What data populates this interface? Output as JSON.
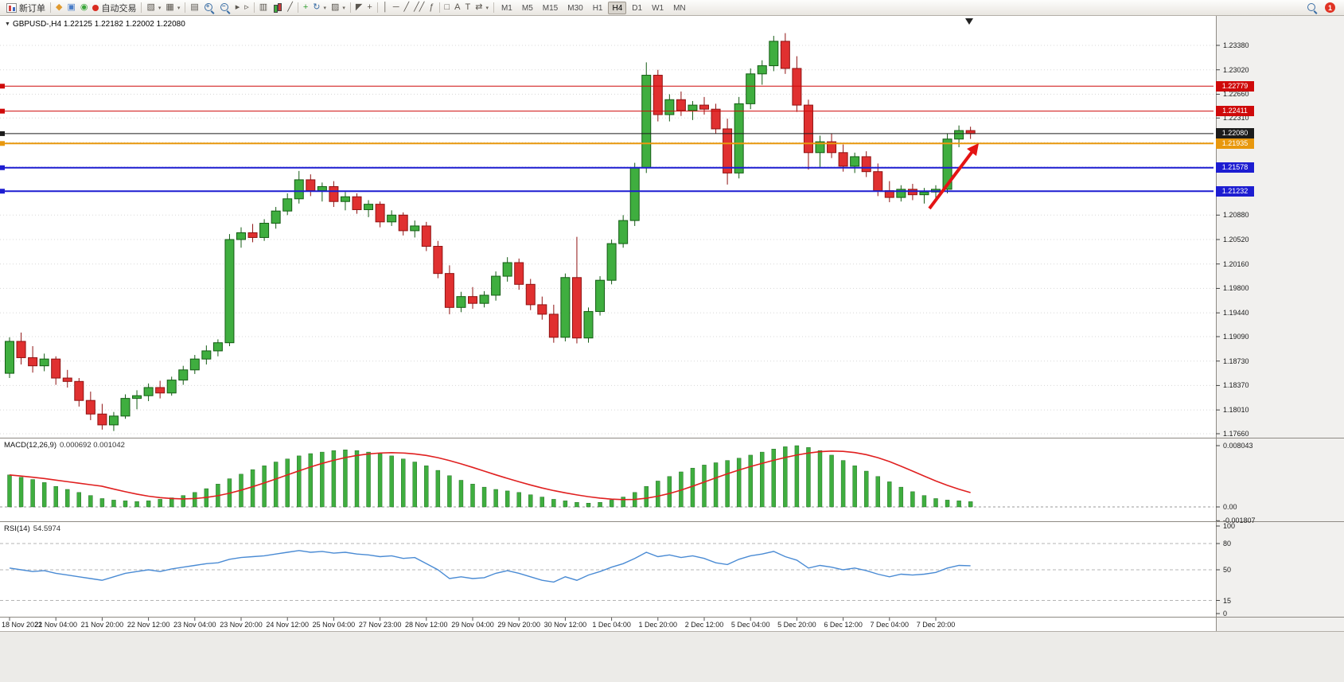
{
  "toolbar": {
    "items": [
      {
        "name": "new-order-button",
        "icon": "new-order-icon",
        "label": "新订单"
      },
      {
        "kind": "sep"
      },
      {
        "name": "market-watch-button",
        "icon": "market-watch-icon",
        "glyph": "◆",
        "color": "#e09a2f"
      },
      {
        "name": "data-window-button",
        "icon": "data-window-icon",
        "glyph": "▣",
        "color": "#4a7dc8"
      },
      {
        "name": "sound-alerts-button",
        "icon": "sound-alerts-icon",
        "glyph": "◉",
        "color": "#3aa53a"
      },
      {
        "name": "autotrade-button",
        "icon": "autotrade-icon",
        "label": "自动交易",
        "color": "#d92b20"
      },
      {
        "kind": "sep"
      },
      {
        "name": "new-chart-button",
        "icon": "new-chart-icon",
        "glyph": "▧",
        "caret": true
      },
      {
        "name": "chart-profiles-button",
        "icon": "chart-profiles-icon",
        "glyph": "▦",
        "caret": true
      },
      {
        "kind": "sep"
      },
      {
        "name": "tile-windows-button",
        "icon": "tile-windows-icon",
        "glyph": "▤"
      },
      {
        "name": "zoom-in-button",
        "icon": "zoom-in-icon"
      },
      {
        "name": "zoom-out-button",
        "icon": "zoom-out-icon"
      },
      {
        "name": "auto-scroll-button",
        "icon": "auto-scroll-icon",
        "glyph": "▸"
      },
      {
        "name": "chart-shift-button",
        "icon": "chart-shift-icon",
        "glyph": "▹"
      },
      {
        "kind": "sep"
      },
      {
        "name": "bar-chart-button",
        "icon": "bar-chart-icon",
        "glyph": "▥"
      },
      {
        "name": "candlestick-chart-button",
        "icon": "candlestick-icon"
      },
      {
        "name": "line-chart-button",
        "icon": "line-chart-icon",
        "glyph": "╱"
      },
      {
        "kind": "sep"
      },
      {
        "name": "indicators-button",
        "icon": "indicators-plus-icon",
        "glyph": "+",
        "color": "#2f9e2f"
      },
      {
        "name": "refresh-button",
        "icon": "refresh-icon",
        "glyph": "↻",
        "color": "#3a6ea5",
        "caret": true
      },
      {
        "name": "templates-button",
        "icon": "templates-icon",
        "glyph": "▨",
        "caret": true
      },
      {
        "kind": "sep"
      },
      {
        "name": "cursor-button",
        "icon": "cursor-icon",
        "glyph": "◤"
      },
      {
        "name": "crosshair-button",
        "icon": "crosshair-icon",
        "glyph": "+"
      },
      {
        "kind": "sep"
      },
      {
        "name": "vertical-line-button",
        "icon": "vertical-line-icon",
        "glyph": "│"
      },
      {
        "name": "horizontal-line-button",
        "icon": "horizontal-line-icon",
        "glyph": "─"
      },
      {
        "name": "trendline-button",
        "icon": "trendline-icon",
        "glyph": "╱"
      },
      {
        "name": "channel-button",
        "icon": "channel-icon",
        "glyph": "╱╱"
      },
      {
        "name": "fibonacci-button",
        "icon": "fibonacci-icon",
        "glyph": "ƒ"
      },
      {
        "kind": "sep"
      },
      {
        "name": "shapes-button",
        "icon": "shapes-icon",
        "glyph": "□"
      },
      {
        "name": "text-button",
        "icon": "text-icon",
        "glyph": "A"
      },
      {
        "name": "text-label-button",
        "icon": "text-label-icon",
        "glyph": "T"
      },
      {
        "name": "arrows-button",
        "icon": "arrow-tools-icon",
        "glyph": "⇄",
        "caret": true
      },
      {
        "kind": "sep"
      }
    ],
    "timeframes": [
      "M1",
      "M5",
      "M15",
      "M30",
      "H1",
      "H4",
      "D1",
      "W1",
      "MN"
    ],
    "active_timeframe": "H4",
    "notification_badge": "1"
  },
  "chart": {
    "symbol_period": "GBPUSD-,H4",
    "ohlc": "1.22125 1.22182 1.22002 1.22080"
  },
  "price_axis": {
    "ticks": [
      "1.23380",
      "1.23020",
      "1.22660",
      "1.22310",
      "1.21950",
      "1.21590",
      "1.21230",
      "1.20880",
      "1.20520",
      "1.20160",
      "1.19800",
      "1.19440",
      "1.19090",
      "1.18730",
      "1.18370",
      "1.18010",
      "1.17660"
    ]
  },
  "lines": [
    {
      "price": 1.22779,
      "label": "1.22779",
      "color": "#cf0a0a",
      "width": 1
    },
    {
      "price": 1.22411,
      "label": "1.22411",
      "color": "#cf0a0a",
      "width": 1
    },
    {
      "price": 1.2208,
      "label": "1.22080",
      "color": "#1c1c1c",
      "width": 1
    },
    {
      "price": 1.21935,
      "label": "1.21935",
      "color": "#e8980e",
      "width": 2
    },
    {
      "price": 1.21578,
      "label": "1.21578",
      "color": "#1d1dd1",
      "width": 2
    },
    {
      "price": 1.21232,
      "label": "1.21232",
      "color": "#1d1dd1",
      "width": 2
    }
  ],
  "indicators": {
    "macd": {
      "title": "MACD(12,26,9)",
      "values": "0.000692 0.001042",
      "scale": [
        "0.008043",
        "0.00",
        "-0.001807"
      ]
    },
    "rsi": {
      "title": "RSI(14)",
      "value": "54.5974",
      "scale": [
        "100",
        "80",
        "50",
        "15",
        "0"
      ],
      "levels": [
        80,
        50,
        15
      ]
    }
  },
  "time_axis": {
    "labels": [
      "18 Nov 2022",
      "21 Nov 04:00",
      "21 Nov 20:00",
      "22 Nov 12:00",
      "23 Nov 04:00",
      "23 Nov 20:00",
      "24 Nov 12:00",
      "25 Nov 04:00",
      "27 Nov 23:00",
      "28 Nov 12:00",
      "29 Nov 04:00",
      "29 Nov 20:00",
      "30 Nov 12:00",
      "1 Dec 04:00",
      "1 Dec 20:00",
      "2 Dec 12:00",
      "5 Dec 04:00",
      "5 Dec 20:00",
      "6 Dec 12:00",
      "7 Dec 04:00",
      "7 Dec 20:00"
    ]
  },
  "chart_data": {
    "type": "candlestick",
    "title": "GBPUSD-,H4",
    "symbol": "GBPUSD-",
    "timeframe": "H4",
    "price_range": [
      1.1766,
      1.2356
    ],
    "candles": [
      [
        1.1855,
        1.1908,
        1.1848,
        1.1902
      ],
      [
        1.1902,
        1.1915,
        1.1868,
        1.1878
      ],
      [
        1.1878,
        1.1895,
        1.1856,
        1.1866
      ],
      [
        1.1866,
        1.1884,
        1.1858,
        1.1876
      ],
      [
        1.1876,
        1.188,
        1.1838,
        1.1848
      ],
      [
        1.1848,
        1.186,
        1.1834,
        1.1843
      ],
      [
        1.1843,
        1.1848,
        1.1806,
        1.1815
      ],
      [
        1.1815,
        1.1828,
        1.1786,
        1.1795
      ],
      [
        1.1795,
        1.181,
        1.1772,
        1.1779
      ],
      [
        1.1779,
        1.1798,
        1.177,
        1.1792
      ],
      [
        1.1792,
        1.1824,
        1.1788,
        1.1818
      ],
      [
        1.1818,
        1.183,
        1.1802,
        1.1822
      ],
      [
        1.1822,
        1.184,
        1.1814,
        1.1834
      ],
      [
        1.1834,
        1.1844,
        1.1818,
        1.1826
      ],
      [
        1.1826,
        1.185,
        1.1822,
        1.1845
      ],
      [
        1.1845,
        1.1866,
        1.1838,
        1.186
      ],
      [
        1.186,
        1.1882,
        1.1854,
        1.1876
      ],
      [
        1.1876,
        1.1896,
        1.1868,
        1.1888
      ],
      [
        1.1888,
        1.1905,
        1.188,
        1.19
      ],
      [
        1.19,
        1.206,
        1.1895,
        1.2052
      ],
      [
        1.2052,
        1.207,
        1.204,
        1.2062
      ],
      [
        1.2062,
        1.2075,
        1.2048,
        1.2055
      ],
      [
        1.2055,
        1.2082,
        1.205,
        1.2076
      ],
      [
        1.2076,
        1.21,
        1.2068,
        1.2094
      ],
      [
        1.2094,
        1.212,
        1.2088,
        1.2112
      ],
      [
        1.2112,
        1.2153,
        1.2105,
        1.214
      ],
      [
        1.214,
        1.2148,
        1.2116,
        1.2124
      ],
      [
        1.2124,
        1.2136,
        1.2108,
        1.213
      ],
      [
        1.213,
        1.2138,
        1.21,
        1.2108
      ],
      [
        1.2108,
        1.2122,
        1.2095,
        1.2115
      ],
      [
        1.2115,
        1.212,
        1.209,
        1.2096
      ],
      [
        1.2096,
        1.211,
        1.2085,
        1.2104
      ],
      [
        1.2104,
        1.2108,
        1.207,
        1.2078
      ],
      [
        1.2078,
        1.2095,
        1.2072,
        1.2088
      ],
      [
        1.2088,
        1.2092,
        1.2058,
        1.2065
      ],
      [
        1.2065,
        1.208,
        1.2055,
        1.2072
      ],
      [
        1.2072,
        1.2078,
        1.2035,
        1.2042
      ],
      [
        1.2042,
        1.205,
        1.1995,
        1.2002
      ],
      [
        1.2002,
        1.2014,
        1.1942,
        1.1952
      ],
      [
        1.1952,
        1.1975,
        1.1945,
        1.1968
      ],
      [
        1.1968,
        1.1982,
        1.195,
        1.1958
      ],
      [
        1.1958,
        1.1976,
        1.1952,
        1.197
      ],
      [
        1.197,
        1.2005,
        1.1962,
        1.1998
      ],
      [
        1.1998,
        1.2026,
        1.199,
        1.2018
      ],
      [
        1.2018,
        1.2024,
        1.1978,
        1.1986
      ],
      [
        1.1986,
        1.1994,
        1.1948,
        1.1956
      ],
      [
        1.1956,
        1.1968,
        1.1934,
        1.1942
      ],
      [
        1.1942,
        1.1956,
        1.19,
        1.1908
      ],
      [
        1.1908,
        1.2002,
        1.1902,
        1.1996
      ],
      [
        1.1996,
        1.2056,
        1.1899,
        1.1907
      ],
      [
        1.1907,
        1.1952,
        1.19,
        1.1946
      ],
      [
        1.1946,
        1.1998,
        1.194,
        1.1992
      ],
      [
        1.1992,
        1.2052,
        1.1986,
        1.2046
      ],
      [
        1.2046,
        1.2088,
        1.204,
        1.208
      ],
      [
        1.208,
        1.2165,
        1.2072,
        1.2158
      ],
      [
        1.2158,
        1.2313,
        1.215,
        1.2294
      ],
      [
        1.2294,
        1.2302,
        1.2226,
        1.2236
      ],
      [
        1.2236,
        1.2266,
        1.2226,
        1.2258
      ],
      [
        1.2258,
        1.227,
        1.2234,
        1.2242
      ],
      [
        1.2242,
        1.2256,
        1.2228,
        1.225
      ],
      [
        1.225,
        1.2262,
        1.2236,
        1.2244
      ],
      [
        1.2244,
        1.2252,
        1.2208,
        1.2215
      ],
      [
        1.2215,
        1.223,
        1.2133,
        1.215
      ],
      [
        1.215,
        1.2262,
        1.2142,
        1.2252
      ],
      [
        1.2252,
        1.2304,
        1.2244,
        1.2296
      ],
      [
        1.2296,
        1.2316,
        1.228,
        1.2308
      ],
      [
        1.2308,
        1.2352,
        1.23,
        1.2344
      ],
      [
        1.2344,
        1.2356,
        1.2296,
        1.2304
      ],
      [
        1.2304,
        1.2322,
        1.224,
        1.225
      ],
      [
        1.225,
        1.2258,
        1.2155,
        1.218
      ],
      [
        1.218,
        1.2205,
        1.2158,
        1.2196
      ],
      [
        1.2196,
        1.2208,
        1.2172,
        1.218
      ],
      [
        1.218,
        1.2192,
        1.2152,
        1.216
      ],
      [
        1.216,
        1.218,
        1.215,
        1.2174
      ],
      [
        1.2174,
        1.2182,
        1.2144,
        1.2152
      ],
      [
        1.2152,
        1.2164,
        1.2116,
        1.2124
      ],
      [
        1.2124,
        1.2138,
        1.2107,
        1.2114
      ],
      [
        1.2114,
        1.2132,
        1.2108,
        1.2126
      ],
      [
        1.2126,
        1.2134,
        1.211,
        1.2118
      ],
      [
        1.2118,
        1.2128,
        1.2105,
        1.2122
      ],
      [
        1.2122,
        1.2132,
        1.2112,
        1.2126
      ],
      [
        1.2126,
        1.2208,
        1.212,
        1.22
      ],
      [
        1.22,
        1.222,
        1.2188,
        1.22125
      ],
      [
        1.22125,
        1.22182,
        1.22002,
        1.2208
      ]
    ],
    "macd_histogram": [
      0.0042,
      0.0039,
      0.0036,
      0.0032,
      0.0027,
      0.0023,
      0.0019,
      0.0015,
      0.0011,
      0.0009,
      0.0008,
      0.0007,
      0.0008,
      0.001,
      0.0012,
      0.0015,
      0.0019,
      0.0024,
      0.003,
      0.0037,
      0.0043,
      0.0049,
      0.0054,
      0.0059,
      0.0063,
      0.0067,
      0.007,
      0.0072,
      0.0074,
      0.0075,
      0.0074,
      0.0072,
      0.007,
      0.0067,
      0.0063,
      0.0059,
      0.0054,
      0.0048,
      0.0041,
      0.0035,
      0.003,
      0.0026,
      0.0023,
      0.0021,
      0.0019,
      0.0016,
      0.0013,
      0.001,
      0.0008,
      0.0006,
      0.0005,
      0.0006,
      0.0009,
      0.0013,
      0.0019,
      0.0027,
      0.0034,
      0.004,
      0.0046,
      0.0051,
      0.0055,
      0.0058,
      0.0061,
      0.0064,
      0.0068,
      0.0072,
      0.0076,
      0.0079,
      0.008043,
      0.0078,
      0.0074,
      0.0068,
      0.0061,
      0.0054,
      0.0047,
      0.004,
      0.0033,
      0.0026,
      0.002,
      0.0015,
      0.0011,
      0.0009,
      0.0008,
      0.000692
    ],
    "rsi_values": [
      52,
      50,
      48,
      49,
      46,
      44,
      42,
      40,
      38,
      42,
      46,
      48,
      50,
      48,
      51,
      53,
      55,
      57,
      58,
      62,
      64,
      65,
      66,
      68,
      70,
      72,
      70,
      71,
      69,
      70,
      68,
      67,
      65,
      66,
      63,
      64,
      57,
      50,
      40,
      42,
      40,
      41,
      46,
      49,
      46,
      42,
      38,
      36,
      42,
      38,
      44,
      48,
      53,
      57,
      63,
      70,
      65,
      67,
      64,
      66,
      63,
      58,
      56,
      62,
      66,
      68,
      71,
      65,
      61,
      52,
      55,
      53,
      50,
      52,
      49,
      45,
      42,
      45,
      44,
      45,
      47,
      52,
      55,
      54.6
    ],
    "colors": {
      "up": "#3fae3f",
      "up_border": "#145c14",
      "down": "#e03030",
      "down_border": "#8f1212",
      "macd_signal": "#e02020",
      "rsi_line": "#4a8bd4",
      "grid": "#d8d8d8"
    }
  },
  "annotations": {
    "arrow_color": "#e41414"
  }
}
